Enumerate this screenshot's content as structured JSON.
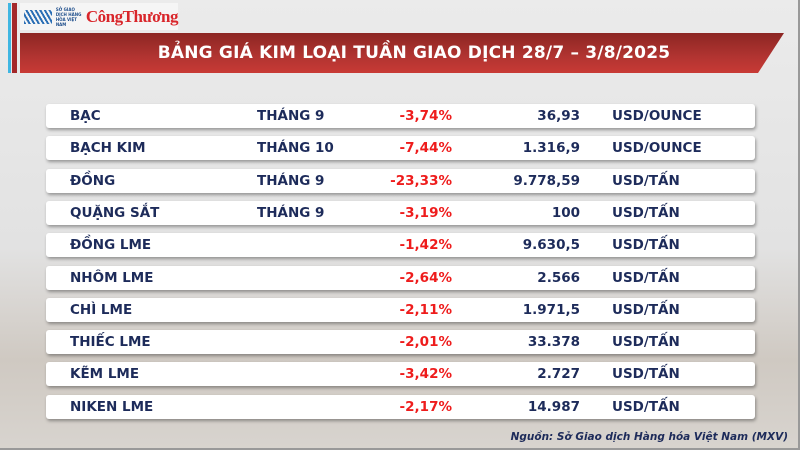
{
  "header": {
    "logo_exchange": "SỞ GIAO DỊCH HÀNG HÓA VIỆT NAM",
    "logo_publication": "CôngThương",
    "title": "BẢNG GIÁ KIM LOẠI TUẦN GIAO DỊCH 28/7 – 3/8/2025"
  },
  "colors": {
    "banner": "#b23431",
    "negative": "#ee1c1c",
    "text": "#1d2b5a"
  },
  "rows": [
    {
      "name": "BẠC",
      "month": "THÁNG 9",
      "change": "-3,74%",
      "price": "36,93",
      "unit": "USD/OUNCE"
    },
    {
      "name": "BẠCH KIM",
      "month": "THÁNG 10",
      "change": "-7,44%",
      "price": "1.316,9",
      "unit": "USD/OUNCE"
    },
    {
      "name": "ĐỒNG",
      "month": "THÁNG 9",
      "change": "-23,33%",
      "price": "9.778,59",
      "unit": "USD/TẤN"
    },
    {
      "name": "QUẶNG SẮT",
      "month": "THÁNG 9",
      "change": "-3,19%",
      "price": "100",
      "unit": "USD/TẤN"
    },
    {
      "name": "ĐỒNG LME",
      "month": "",
      "change": "-1,42%",
      "price": "9.630,5",
      "unit": "USD/TẤN"
    },
    {
      "name": "NHÔM LME",
      "month": "",
      "change": "-2,64%",
      "price": "2.566",
      "unit": "USD/TẤN"
    },
    {
      "name": "CHÌ LME",
      "month": "",
      "change": "-2,11%",
      "price": "1.971,5",
      "unit": "USD/TẤN"
    },
    {
      "name": "THIẾC LME",
      "month": "",
      "change": "-2,01%",
      "price": "33.378",
      "unit": "USD/TẤN"
    },
    {
      "name": "KẼM LME",
      "month": "",
      "change": "-3,42%",
      "price": "2.727",
      "unit": "USD/TẤN"
    },
    {
      "name": "NIKEN LME",
      "month": "",
      "change": "-2,17%",
      "price": "14.987",
      "unit": "USD/TẤN"
    }
  ],
  "footer": {
    "source": "Nguồn: Sở Giao dịch Hàng hóa Việt Nam (MXV)"
  }
}
